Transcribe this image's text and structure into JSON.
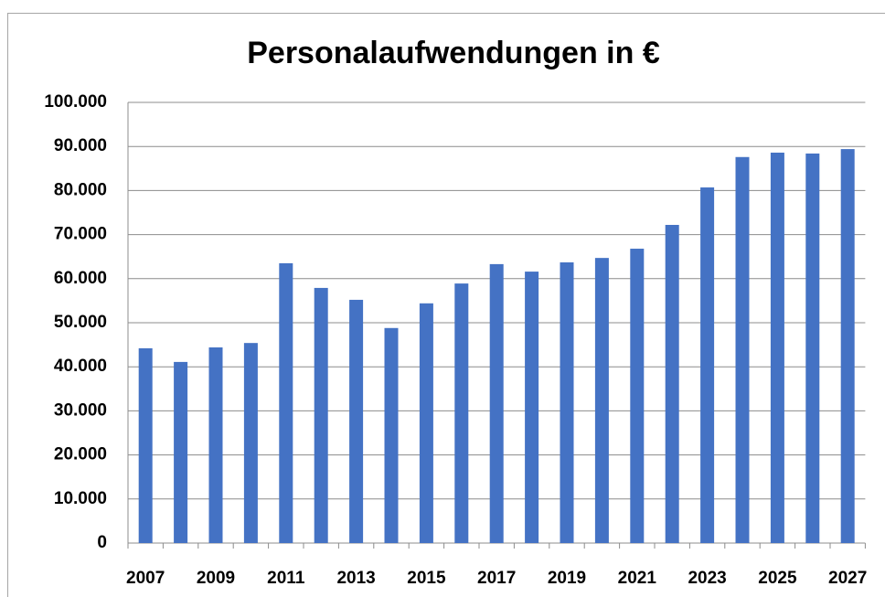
{
  "chart_data": {
    "type": "bar",
    "title": "Personalaufwendungen in €",
    "categories": [
      "2007",
      null,
      "2009",
      null,
      "2011",
      null,
      "2013",
      null,
      "2015",
      null,
      "2017",
      null,
      "2019",
      null,
      "2021",
      null,
      "2023",
      null,
      "2025",
      null,
      "2027"
    ],
    "values": [
      44200,
      41100,
      44400,
      45400,
      63500,
      57900,
      55200,
      48800,
      54400,
      58900,
      63300,
      61600,
      63700,
      64700,
      66800,
      72200,
      80700,
      87600,
      88600,
      88400,
      89400
    ],
    "color": "#4472c4",
    "ylim": [
      0,
      100000
    ],
    "yticks": [
      0,
      {
        "value": 10000,
        "label": "10.000"
      },
      {
        "value": 20000,
        "label": "20.000"
      },
      {
        "value": 30000,
        "label": "30.000"
      },
      {
        "value": 40000,
        "label": "40.000"
      },
      {
        "value": 50000,
        "label": "50.000"
      },
      {
        "value": 60000,
        "label": "60.000"
      },
      {
        "value": 70000,
        "label": "70.000"
      },
      {
        "value": 80000,
        "label": "80.000"
      },
      {
        "value": 90000,
        "label": "90.000"
      },
      {
        "value": 100000,
        "label": "100.000"
      }
    ],
    "grid": true
  }
}
